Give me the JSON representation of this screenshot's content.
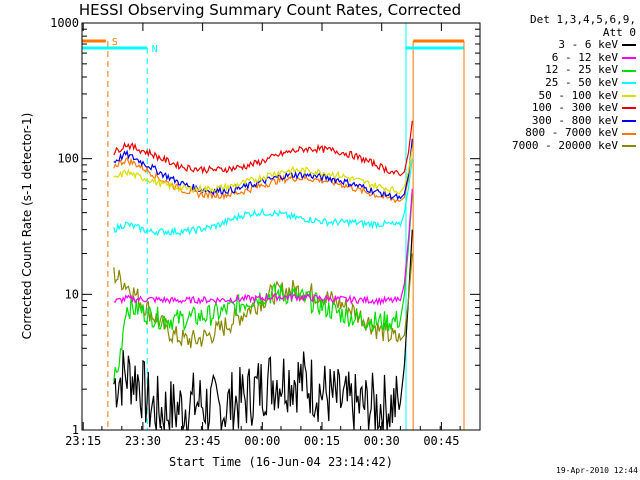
{
  "chart_data": {
    "type": "line",
    "title": "HESSI Observing Summary Count Rates, Corrected",
    "xlabel": "Start Time (16-Jun-04 23:14:42)",
    "ylabel": "Corrected Count Rate (s-1 detector-1)",
    "yscale": "log",
    "ylim": [
      1,
      1000
    ],
    "xlim_minutes": [
      0,
      100
    ],
    "x_ticks": [
      "23:15",
      "23:30",
      "23:45",
      "00:00",
      "00:15",
      "00:30",
      "00:45"
    ],
    "y_ticks": [
      "1",
      "10",
      "100",
      "1000"
    ],
    "legend_title": "Det 1,3,4,5,6,9,",
    "legend_subtitle": "Att 0",
    "legend_position": "right",
    "series": [
      {
        "name": "3 - 6 keV",
        "color": "#000000",
        "x": [
          8,
          11,
          14,
          17,
          20,
          23,
          26,
          29,
          32,
          35,
          38,
          41,
          44,
          47,
          50,
          53,
          56,
          59,
          62,
          65,
          68,
          71,
          74,
          77,
          80,
          81,
          82,
          83
        ],
        "y": [
          2.2,
          2.6,
          2.4,
          1.5,
          1.4,
          1.4,
          1.5,
          1.6,
          1.5,
          1.4,
          1.6,
          1.7,
          2.0,
          2.3,
          2.4,
          2.4,
          2.3,
          2.0,
          1.8,
          1.6,
          1.5,
          1.5,
          1.5,
          1.5,
          1.6,
          3.0,
          9.0,
          30.0
        ]
      },
      {
        "name": "6 - 12 keV",
        "color": "#ff00ff",
        "x": [
          8,
          11,
          14,
          17,
          20,
          23,
          26,
          29,
          32,
          35,
          38,
          41,
          44,
          47,
          50,
          53,
          56,
          59,
          62,
          65,
          68,
          71,
          74,
          77,
          80,
          81,
          82,
          83
        ],
        "y": [
          8.8,
          9.3,
          9.2,
          9.2,
          9.1,
          9.0,
          9.0,
          9.1,
          9.1,
          9.1,
          9.2,
          9.3,
          9.3,
          9.5,
          9.6,
          9.6,
          9.5,
          9.4,
          9.3,
          9.2,
          9.1,
          9.1,
          9.0,
          9.0,
          9.0,
          12.0,
          25.0,
          60.0
        ]
      },
      {
        "name": "12 - 25 keV",
        "color": "#00dd00",
        "x": [
          8,
          9,
          11,
          14,
          17,
          20,
          23,
          26,
          29,
          32,
          35,
          38,
          41,
          44,
          47,
          50,
          53,
          56,
          59,
          62,
          65,
          68,
          71,
          74,
          77,
          80,
          81,
          82,
          83
        ],
        "y": [
          2.6,
          2.6,
          8.0,
          7.8,
          7.0,
          6.6,
          6.5,
          6.6,
          6.8,
          7.0,
          7.4,
          8.0,
          8.8,
          9.5,
          10.0,
          10.2,
          9.8,
          9.2,
          8.5,
          7.8,
          7.2,
          6.8,
          6.5,
          6.3,
          6.3,
          6.5,
          10.0,
          22.0,
          55.0
        ]
      },
      {
        "name": "25 - 50 keV",
        "color": "#00ffff",
        "x": [
          8,
          11,
          14,
          17,
          20,
          23,
          26,
          29,
          32,
          35,
          38,
          41,
          44,
          47,
          50,
          53,
          56,
          59,
          62,
          65,
          68,
          71,
          74,
          77,
          80,
          81,
          82,
          83
        ],
        "y": [
          30,
          33,
          31,
          29,
          29,
          29,
          29,
          30,
          31,
          33,
          36,
          39,
          40,
          40,
          39,
          37,
          36,
          35,
          34,
          34,
          34,
          33,
          33,
          33,
          32,
          40,
          60,
          100
        ]
      },
      {
        "name": "50 - 100 keV",
        "color": "#dddd00",
        "x": [
          8,
          11,
          14,
          17,
          20,
          23,
          26,
          29,
          32,
          35,
          38,
          41,
          44,
          47,
          50,
          53,
          56,
          59,
          62,
          65,
          68,
          71,
          74,
          77,
          80,
          81,
          82,
          83
        ],
        "y": [
          70,
          80,
          74,
          70,
          65,
          62,
          60,
          60,
          60,
          61,
          63,
          67,
          71,
          76,
          80,
          82,
          82,
          80,
          78,
          75,
          71,
          67,
          63,
          60,
          57,
          62,
          80,
          120
        ]
      },
      {
        "name": "100 - 300 keV",
        "color": "#ee0000",
        "x": [
          8,
          11,
          14,
          17,
          20,
          23,
          26,
          29,
          32,
          35,
          38,
          41,
          44,
          47,
          50,
          53,
          56,
          59,
          62,
          65,
          68,
          71,
          74,
          77,
          80,
          81,
          82,
          83
        ],
        "y": [
          110,
          128,
          118,
          110,
          100,
          92,
          86,
          84,
          83,
          83,
          85,
          88,
          93,
          100,
          108,
          114,
          118,
          118,
          116,
          112,
          106,
          98,
          90,
          82,
          75,
          80,
          110,
          190
        ]
      },
      {
        "name": "300 - 800 keV",
        "color": "#0000ee",
        "x": [
          8,
          11,
          14,
          17,
          20,
          23,
          26,
          29,
          32,
          35,
          38,
          41,
          44,
          47,
          50,
          53,
          56,
          59,
          62,
          65,
          68,
          71,
          74,
          77,
          80,
          81,
          82,
          83
        ],
        "y": [
          95,
          108,
          98,
          88,
          78,
          70,
          64,
          60,
          58,
          58,
          59,
          62,
          66,
          70,
          74,
          76,
          76,
          74,
          72,
          69,
          65,
          61,
          57,
          54,
          51,
          55,
          75,
          140
        ]
      },
      {
        "name": "800 - 7000 keV",
        "color": "#ff7700",
        "x": [
          8,
          11,
          14,
          17,
          20,
          23,
          26,
          29,
          32,
          35,
          38,
          41,
          44,
          47,
          50,
          53,
          56,
          59,
          62,
          65,
          68,
          71,
          74,
          77,
          80,
          81,
          82,
          83
        ],
        "y": [
          88,
          98,
          90,
          80,
          70,
          63,
          58,
          55,
          54,
          54,
          55,
          58,
          62,
          66,
          70,
          72,
          72,
          70,
          68,
          65,
          61,
          57,
          54,
          51,
          49,
          52,
          70,
          130
        ]
      },
      {
        "name": "7000 - 20000 keV",
        "color": "#888800",
        "x": [
          8,
          11,
          14,
          17,
          20,
          23,
          26,
          29,
          32,
          35,
          38,
          41,
          44,
          47,
          50,
          53,
          56,
          59,
          62,
          65,
          68,
          71,
          74,
          77,
          80,
          81,
          82,
          83
        ],
        "y": [
          14,
          12,
          9.5,
          7.5,
          6.0,
          5.0,
          4.6,
          4.6,
          5.0,
          5.6,
          6.4,
          7.4,
          8.6,
          9.8,
          10.5,
          10.8,
          10.5,
          10.0,
          9.3,
          8.5,
          7.6,
          6.6,
          5.6,
          5.0,
          4.6,
          5.0,
          9.0,
          20.0
        ]
      }
    ],
    "markers": [
      {
        "label": "S",
        "color": "#ff7700",
        "x": [
          6,
          10
        ],
        "style": "dashed"
      },
      {
        "label": "N",
        "color": "#00ffff",
        "x": [
          0,
          16
        ],
        "style": "dashed"
      }
    ],
    "timestamp": "19-Apr-2010 12:44"
  }
}
